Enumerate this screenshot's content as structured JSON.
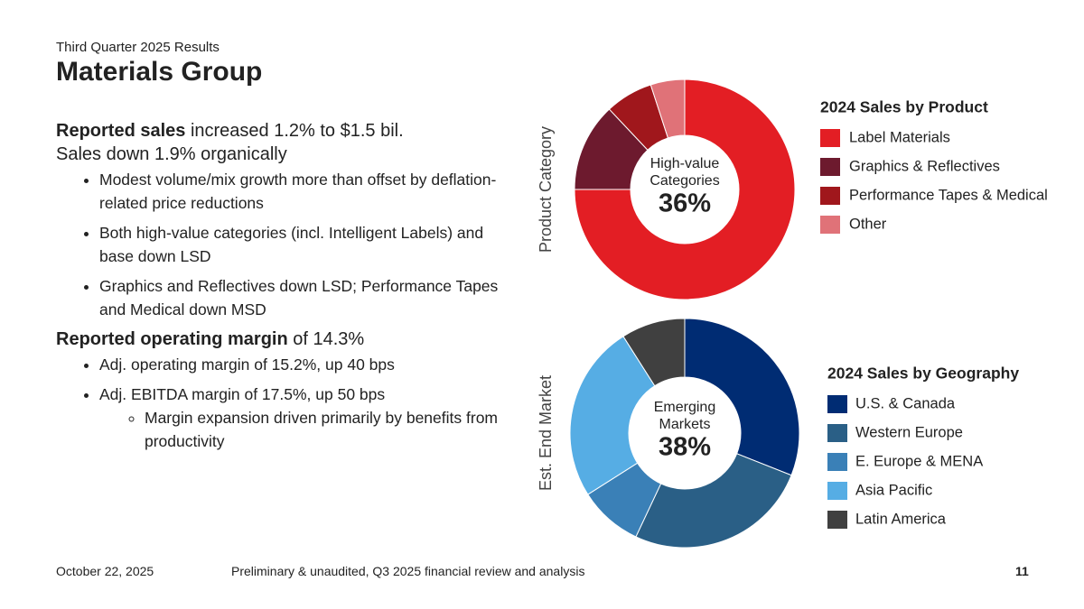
{
  "header": {
    "subtitle": "Third Quarter 2025 Results",
    "title": "Materials Group"
  },
  "sections": [
    {
      "lead_bold": "Reported sales",
      "lead_rest": "increased 1.2% to $1.5 bil.",
      "sub": "Sales down 1.9% organically",
      "bullets": [
        {
          "text": "Modest volume/mix growth more than offset by deflation-related price reductions"
        },
        {
          "text": "Both high-value categories (incl. Intelligent Labels) and base down LSD"
        },
        {
          "text": "Graphics and Reflectives down LSD; Performance Tapes and Medical down MSD"
        }
      ]
    },
    {
      "lead_bold": "Reported operating margin",
      "lead_rest": "of 14.3%",
      "bullets": [
        {
          "text": "Adj. operating margin of 15.2%, up 40 bps"
        },
        {
          "text": "Adj. EBITDA margin of 17.5%, up 50 bps",
          "sub_bullets": [
            "Margin expansion driven primarily by benefits from productivity"
          ]
        }
      ]
    }
  ],
  "chart_data": [
    {
      "type": "pie",
      "title": "2024 Sales by Product",
      "axis_label": "Product Category",
      "center_label": [
        "High-value",
        "Categories"
      ],
      "center_value": "36%",
      "categories": [
        "Label Materials",
        "Graphics & Reflectives",
        "Performance Tapes & Medical",
        "Other"
      ],
      "values": [
        75,
        13,
        7,
        5
      ],
      "colors": [
        "#e31e24",
        "#6d1a2e",
        "#a0171c",
        "#e07278"
      ]
    },
    {
      "type": "pie",
      "title": "2024 Sales by Geography",
      "axis_label": "Est. End Market",
      "center_label": [
        "Emerging",
        "Markets"
      ],
      "center_value": "38%",
      "categories": [
        "U.S. & Canada",
        "Western Europe",
        "E. Europe & MENA",
        "Asia Pacific",
        "Latin America"
      ],
      "values": [
        31,
        26,
        9,
        25,
        9
      ],
      "colors": [
        "#002c73",
        "#2a5f86",
        "#3a80b7",
        "#56ade4",
        "#404040"
      ]
    }
  ],
  "footer": {
    "date": "October 22, 2025",
    "note": "Preliminary & unaudited, Q3 2025 financial review and analysis",
    "page": "11"
  }
}
